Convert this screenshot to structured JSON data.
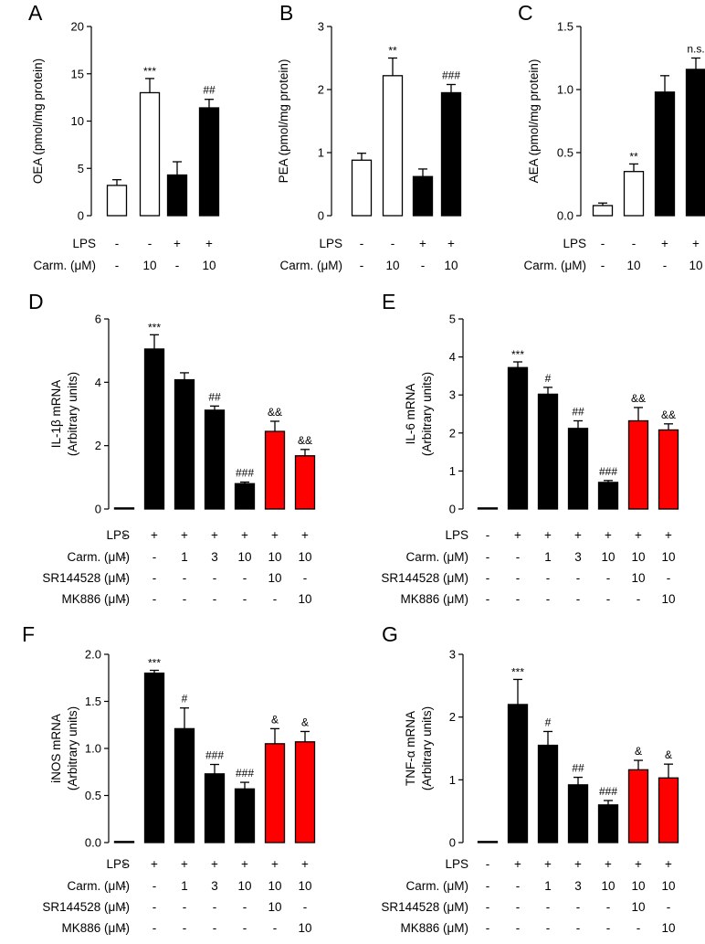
{
  "colors": {
    "black": "#000000",
    "red": "#ff0000",
    "white": "#ffffff"
  },
  "chart_data": [
    {
      "id": "A",
      "letter": "A",
      "type": "bar",
      "ylabel": "OEA (pmol/mg protein)",
      "ylim": [
        0,
        20
      ],
      "yticks": [
        "0",
        "5",
        "10",
        "15",
        "20"
      ],
      "ytick_values": [
        0,
        5,
        10,
        15,
        20
      ],
      "values": [
        3.2,
        13.0,
        4.3,
        11.4
      ],
      "errors": [
        0.6,
        1.5,
        1.4,
        0.9
      ],
      "fills": [
        "white",
        "white",
        "black",
        "black"
      ],
      "annotations": [
        "",
        "***",
        "",
        "##"
      ],
      "treatments": [
        {
          "label": "LPS",
          "values": [
            "-",
            "-",
            "+",
            "+"
          ]
        },
        {
          "label": "Carm. (μM)",
          "values": [
            "-",
            "10",
            "-",
            "10"
          ]
        }
      ]
    },
    {
      "id": "B",
      "letter": "B",
      "type": "bar",
      "ylabel": "PEA (pmol/mg protein)",
      "ylim": [
        0,
        3
      ],
      "yticks": [
        "0",
        "1",
        "2",
        "3"
      ],
      "ytick_values": [
        0,
        1,
        2,
        3
      ],
      "values": [
        0.88,
        2.22,
        0.62,
        1.95
      ],
      "errors": [
        0.11,
        0.28,
        0.12,
        0.13
      ],
      "fills": [
        "white",
        "white",
        "black",
        "black"
      ],
      "annotations": [
        "",
        "**",
        "",
        "###"
      ],
      "treatments": [
        {
          "label": "LPS",
          "values": [
            "-",
            "-",
            "+",
            "+"
          ]
        },
        {
          "label": "Carm. (μM)",
          "values": [
            "-",
            "10",
            "-",
            "10"
          ]
        }
      ]
    },
    {
      "id": "C",
      "letter": "C",
      "type": "bar",
      "ylabel": "AEA (pmol/mg protein)",
      "ylim": [
        0,
        1.5
      ],
      "yticks": [
        "0.0",
        "0.5",
        "1.0",
        "1.5"
      ],
      "ytick_values": [
        0,
        0.5,
        1.0,
        1.5
      ],
      "values": [
        0.08,
        0.35,
        0.98,
        1.16
      ],
      "errors": [
        0.02,
        0.06,
        0.13,
        0.09
      ],
      "fills": [
        "white",
        "white",
        "black",
        "black"
      ],
      "annotations": [
        "",
        "**",
        "",
        "n.s."
      ],
      "treatments": [
        {
          "label": "LPS",
          "values": [
            "-",
            "-",
            "+",
            "+"
          ]
        },
        {
          "label": "Carm. (μM)",
          "values": [
            "-",
            "10",
            "-",
            "10"
          ]
        }
      ]
    },
    {
      "id": "D",
      "letter": "D",
      "type": "bar",
      "ylabel": [
        "IL-1β mRNA",
        "(Arbitrary units)"
      ],
      "ylim": [
        0,
        6
      ],
      "yticks": [
        "0",
        "2",
        "4",
        "6"
      ],
      "ytick_values": [
        0,
        2,
        4,
        6
      ],
      "values": [
        0.02,
        5.05,
        4.08,
        3.12,
        0.8,
        2.45,
        1.68
      ],
      "errors": [
        0.0,
        0.45,
        0.22,
        0.13,
        0.05,
        0.32,
        0.2
      ],
      "fills": [
        "black",
        "black",
        "black",
        "black",
        "black",
        "red",
        "red"
      ],
      "annotations": [
        "",
        "***",
        "",
        "##",
        "###",
        "&&",
        "&&"
      ],
      "treatments": [
        {
          "label": "LPS",
          "values": [
            "-",
            "+",
            "+",
            "+",
            "+",
            "+",
            "+"
          ]
        },
        {
          "label": "Carm. (μM)",
          "values": [
            "-",
            "-",
            "1",
            "3",
            "10",
            "10",
            "10"
          ]
        },
        {
          "label": "SR144528 (μM)",
          "values": [
            "-",
            "-",
            "-",
            "-",
            "-",
            "10",
            "-"
          ]
        },
        {
          "label": "MK886 (μM)",
          "values": [
            "-",
            "-",
            "-",
            "-",
            "-",
            "-",
            "10"
          ]
        }
      ]
    },
    {
      "id": "E",
      "letter": "E",
      "type": "bar",
      "ylabel": [
        "IL-6 mRNA",
        "(Arbitrary units)"
      ],
      "ylim": [
        0,
        5
      ],
      "yticks": [
        "0",
        "1",
        "2",
        "3",
        "4",
        "5"
      ],
      "ytick_values": [
        0,
        1,
        2,
        3,
        4,
        5
      ],
      "values": [
        0.02,
        3.72,
        3.02,
        2.12,
        0.7,
        2.32,
        2.08
      ],
      "errors": [
        0.0,
        0.15,
        0.18,
        0.2,
        0.05,
        0.35,
        0.16
      ],
      "fills": [
        "black",
        "black",
        "black",
        "black",
        "black",
        "red",
        "red"
      ],
      "annotations": [
        "",
        "***",
        "#",
        "##",
        "###",
        "&&",
        "&&"
      ],
      "treatments": [
        {
          "label": "LPS",
          "values": [
            "-",
            "+",
            "+",
            "+",
            "+",
            "+",
            "+"
          ]
        },
        {
          "label": "Carm. (μM)",
          "values": [
            "-",
            "-",
            "1",
            "3",
            "10",
            "10",
            "10"
          ]
        },
        {
          "label": "SR144528 (μM)",
          "values": [
            "-",
            "-",
            "-",
            "-",
            "-",
            "10",
            "-"
          ]
        },
        {
          "label": "MK886 (μM)",
          "values": [
            "-",
            "-",
            "-",
            "-",
            "-",
            "-",
            "10"
          ]
        }
      ]
    },
    {
      "id": "F",
      "letter": "F",
      "type": "bar",
      "ylabel": [
        "iNOS mRNA",
        "(Arbitrary units)"
      ],
      "ylim": [
        0,
        2
      ],
      "yticks": [
        "0.0",
        "0.5",
        "1.0",
        "1.5",
        "2.0"
      ],
      "ytick_values": [
        0,
        0.5,
        1.0,
        1.5,
        2.0
      ],
      "values": [
        0.01,
        1.8,
        1.21,
        0.73,
        0.57,
        1.05,
        1.07
      ],
      "errors": [
        0.0,
        0.03,
        0.22,
        0.1,
        0.07,
        0.16,
        0.11
      ],
      "fills": [
        "black",
        "black",
        "black",
        "black",
        "black",
        "red",
        "red"
      ],
      "annotations": [
        "",
        "***",
        "#",
        "###",
        "###",
        "&",
        "&"
      ],
      "treatments": [
        {
          "label": "LPS",
          "values": [
            "-",
            "+",
            "+",
            "+",
            "+",
            "+",
            "+"
          ]
        },
        {
          "label": "Carm. (μM)",
          "values": [
            "-",
            "-",
            "1",
            "3",
            "10",
            "10",
            "10"
          ]
        },
        {
          "label": "SR144528 (μM)",
          "values": [
            "-",
            "-",
            "-",
            "-",
            "-",
            "10",
            "-"
          ]
        },
        {
          "label": "MK886 (μM)",
          "values": [
            "-",
            "-",
            "-",
            "-",
            "-",
            "-",
            "10"
          ]
        }
      ]
    },
    {
      "id": "G",
      "letter": "G",
      "type": "bar",
      "ylabel": [
        "TNF-α mRNA",
        "(Arbitrary units)"
      ],
      "ylim": [
        0,
        3
      ],
      "yticks": [
        "0",
        "1",
        "2",
        "3"
      ],
      "ytick_values": [
        0,
        1,
        2,
        3
      ],
      "values": [
        0.01,
        2.2,
        1.55,
        0.92,
        0.6,
        1.16,
        1.03
      ],
      "errors": [
        0.0,
        0.4,
        0.22,
        0.12,
        0.07,
        0.15,
        0.22
      ],
      "fills": [
        "black",
        "black",
        "black",
        "black",
        "black",
        "red",
        "red"
      ],
      "annotations": [
        "",
        "***",
        "#",
        "##",
        "###",
        "&",
        "&"
      ],
      "treatments": [
        {
          "label": "LPS",
          "values": [
            "-",
            "+",
            "+",
            "+",
            "+",
            "+",
            "+"
          ]
        },
        {
          "label": "Carm. (μM)",
          "values": [
            "-",
            "-",
            "1",
            "3",
            "10",
            "10",
            "10"
          ]
        },
        {
          "label": "SR144528 (μM)",
          "values": [
            "-",
            "-",
            "-",
            "-",
            "-",
            "10",
            "-"
          ]
        },
        {
          "label": "MK886 (μM)",
          "values": [
            "-",
            "-",
            "-",
            "-",
            "-",
            "-",
            "10"
          ]
        }
      ]
    }
  ]
}
